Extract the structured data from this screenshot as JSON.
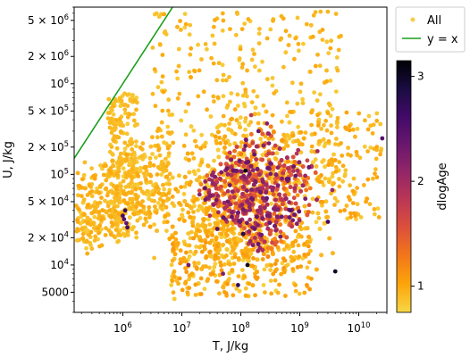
{
  "chart_data": {
    "type": "scatter",
    "xlabel": "T, J/kg",
    "ylabel": "U, J/kg",
    "x_scale": "log",
    "y_scale": "log",
    "xlim": [
      150000,
      30000000000
    ],
    "ylim": [
      3000,
      7000000
    ],
    "x_ticks": [
      {
        "value": 1000000,
        "base": "10",
        "exp": "6"
      },
      {
        "value": 10000000,
        "base": "10",
        "exp": "7"
      },
      {
        "value": 100000000,
        "base": "10",
        "exp": "8"
      },
      {
        "value": 1000000000,
        "base": "10",
        "exp": "9"
      },
      {
        "value": 10000000000,
        "base": "10",
        "exp": "10"
      }
    ],
    "y_ticks": [
      {
        "value": 5000,
        "text": "5000"
      },
      {
        "value": 10000,
        "base": "10",
        "exp": "4"
      },
      {
        "value": 20000,
        "base": "2 × 10",
        "exp": "4"
      },
      {
        "value": 50000,
        "base": "5 × 10",
        "exp": "4"
      },
      {
        "value": 100000,
        "base": "10",
        "exp": "5"
      },
      {
        "value": 200000,
        "base": "2 × 10",
        "exp": "5"
      },
      {
        "value": 500000,
        "base": "5 × 10",
        "exp": "5"
      },
      {
        "value": 1000000,
        "base": "10",
        "exp": "6"
      },
      {
        "value": 2000000,
        "base": "2 × 10",
        "exp": "6"
      },
      {
        "value": 5000000,
        "base": "5 × 10",
        "exp": "6"
      }
    ],
    "legend": {
      "placement": "upper-right, outside axes",
      "entries": [
        {
          "label": "All",
          "marker": "dot",
          "color": "#f5cd45"
        },
        {
          "label": "y = x",
          "marker": "line",
          "color": "#1a9e1a"
        }
      ]
    },
    "line": {
      "name": "y = x",
      "color": "#1a9e1a",
      "points": [
        [
          150000,
          150000
        ],
        [
          7000000,
          7000000
        ]
      ]
    },
    "colorbar": {
      "label": "dlogAge",
      "range": [
        0.75,
        3.15
      ],
      "ticks": [
        1,
        2,
        3
      ],
      "colormap": "inferno (reversed)",
      "stops": [
        "#f6d746",
        "#fca50a",
        "#f37819",
        "#dd513a",
        "#bc3754",
        "#932667",
        "#6a176e",
        "#420a68",
        "#1a0c41",
        "#000004"
      ]
    },
    "series": [
      {
        "name": "All",
        "description_points": [
          [
            1000000.0,
            35000.0,
            2.6
          ],
          [
            1050000.0,
            32000.0,
            2.5
          ],
          [
            1100000.0,
            40000.0,
            2.7
          ],
          [
            1150000.0,
            29000.0,
            2.4
          ],
          [
            1200000.0,
            26000.0,
            2.6
          ],
          [
            13000000.0,
            10000.0,
            2.3
          ],
          [
            20000000.0,
            60000.0,
            2.1
          ],
          [
            30000000.0,
            35000.0,
            1.9
          ],
          [
            60000000.0,
            50000.0,
            2.3
          ],
          [
            80000000.0,
            110000.0,
            2.0
          ],
          [
            120000000.0,
            110000.0,
            3.1
          ],
          [
            130000000.0,
            10000.0,
            3.0
          ],
          [
            110000000.0,
            22000.0,
            2.8
          ],
          [
            90000000.0,
            6000.0,
            2.7
          ],
          [
            4000000000.0,
            8500.0,
            3.0
          ],
          [
            25000000000.0,
            250000.0,
            2.5
          ],
          [
            300000000.0,
            220000.0,
            2.2
          ],
          [
            150000000.0,
            450000.0,
            1.8
          ],
          [
            200000000.0,
            300000.0,
            2.4
          ],
          [
            500000000.0,
            90000.0,
            2.2
          ],
          [
            700000000.0,
            40000.0,
            2.5
          ],
          [
            2000000000.0,
            180000.0,
            2.0
          ],
          [
            3000000000.0,
            30000.0,
            2.6
          ],
          [
            40000000.0,
            25000.0,
            2.5
          ],
          [
            50000000.0,
            8000.0,
            2.2
          ]
        ]
      }
    ]
  }
}
